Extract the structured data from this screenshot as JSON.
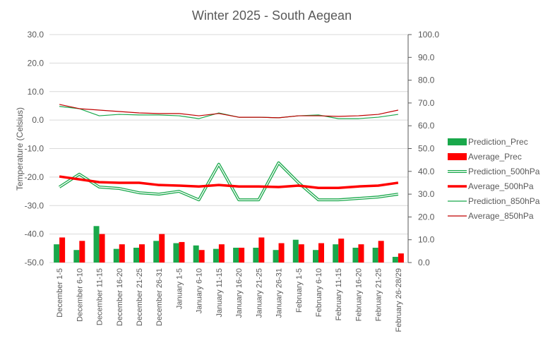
{
  "chart_data": {
    "type": "combo",
    "title": "Winter 2025 - South Aegean",
    "ylabel": "Temperature (Celsius)",
    "y2label": "",
    "ylim": [
      -50,
      30
    ],
    "y2lim": [
      0,
      100
    ],
    "yticks": [
      "30.0",
      "20.0",
      "10.0",
      "0.0",
      "-10.0",
      "-20.0",
      "-30.0",
      "-40.0",
      "-50.0"
    ],
    "y2ticks": [
      "100.0",
      "90.0",
      "80.0",
      "70.0",
      "60.0",
      "50.0",
      "40.0",
      "30.0",
      "20.0",
      "10.0",
      "0.0"
    ],
    "categories": [
      "December 1-5",
      "December 6-10",
      "December 11-15",
      "December 16-20",
      "December 21-25",
      "December 26-31",
      "January 1-5",
      "January 6-10",
      "January 11-15",
      "January 16-20",
      "January 21-25",
      "January 26-31",
      "February 1-5",
      "February 6-10",
      "February 11-15",
      "February 16-20",
      "February 21-25",
      "February 26-28/29"
    ],
    "legend_position": "right",
    "series": [
      {
        "name": "Prediction_Prec",
        "type": "bar",
        "axis": "secondary",
        "color": "#19a84b",
        "values": [
          8.0,
          5.5,
          16.0,
          6.0,
          6.5,
          9.5,
          8.5,
          7.5,
          6.0,
          6.5,
          6.5,
          5.5,
          10.0,
          5.5,
          8.0,
          6.5,
          6.5,
          2.5
        ]
      },
      {
        "name": "Average_Prec",
        "type": "bar",
        "axis": "secondary",
        "color": "#ff0000",
        "values": [
          11.0,
          9.5,
          12.5,
          8.0,
          8.0,
          12.5,
          9.0,
          5.5,
          8.0,
          6.5,
          11.0,
          8.5,
          8.0,
          8.5,
          10.5,
          8.0,
          9.5,
          4.0
        ]
      },
      {
        "name": "Prediction_500hPa",
        "type": "line",
        "style": "double",
        "axis": "primary",
        "color": "#19a84b",
        "values": [
          -23.5,
          -19.0,
          -23.5,
          -24.0,
          -25.5,
          -26.0,
          -25.0,
          -28.0,
          -15.5,
          -28.0,
          -28.0,
          -15.0,
          -22.0,
          -28.0,
          -28.0,
          -27.5,
          -27.0,
          -26.0
        ]
      },
      {
        "name": "Average_500hPa",
        "type": "line",
        "style": "thick",
        "axis": "primary",
        "color": "#ff0000",
        "values": [
          -19.8,
          -20.8,
          -21.8,
          -22.0,
          -22.0,
          -22.8,
          -23.0,
          -23.3,
          -22.8,
          -23.3,
          -23.3,
          -23.5,
          -23.0,
          -23.8,
          -23.8,
          -23.3,
          -23.0,
          -22.0
        ]
      },
      {
        "name": "Prediction_850hPa",
        "type": "line",
        "style": "thin",
        "axis": "primary",
        "color": "#19a84b",
        "values": [
          4.8,
          4.0,
          1.5,
          2.0,
          1.8,
          1.8,
          1.5,
          0.5,
          2.5,
          1.0,
          1.0,
          0.8,
          1.5,
          1.8,
          0.5,
          0.5,
          1.0,
          2.0
        ]
      },
      {
        "name": "Average_850hPa",
        "type": "line",
        "style": "thin",
        "axis": "primary",
        "color": "#c00000",
        "values": [
          5.5,
          4.0,
          3.5,
          3.0,
          2.5,
          2.3,
          2.3,
          1.5,
          2.3,
          1.0,
          1.0,
          0.8,
          1.5,
          1.5,
          1.3,
          1.5,
          2.0,
          3.5
        ]
      }
    ]
  }
}
